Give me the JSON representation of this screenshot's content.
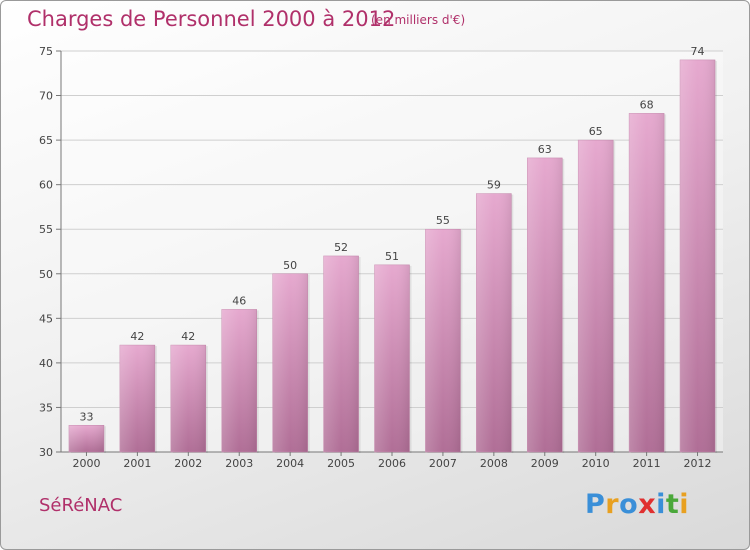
{
  "title": "Charges de Personnel 2000 à 2012",
  "subtitle": "(en milliers d'€)",
  "location": "SéRéNAC",
  "logo": {
    "letters": [
      "P",
      "r",
      "o",
      "x",
      "i",
      "t",
      "i"
    ],
    "colors": [
      "#3a8fd8",
      "#e8a020",
      "#3a8fd8",
      "#e03030",
      "#3a8fd8",
      "#4aa83a",
      "#e8a020"
    ]
  },
  "colors": {
    "bar": "#d689b8",
    "text_accent": "#b0306a"
  },
  "chart_data": {
    "type": "bar",
    "title": "Charges de Personnel 2000 à 2012",
    "subtitle": "(en milliers d'€)",
    "categories": [
      "2000",
      "2001",
      "2002",
      "2003",
      "2004",
      "2005",
      "2006",
      "2007",
      "2008",
      "2009",
      "2010",
      "2011",
      "2012"
    ],
    "values": [
      33,
      42,
      42,
      46,
      50,
      52,
      51,
      55,
      59,
      63,
      65,
      68,
      74
    ],
    "ylim": [
      30,
      75
    ],
    "yticks": [
      30,
      35,
      40,
      45,
      50,
      55,
      60,
      65,
      70,
      75
    ],
    "grid": true,
    "xlabel": "",
    "ylabel": ""
  }
}
